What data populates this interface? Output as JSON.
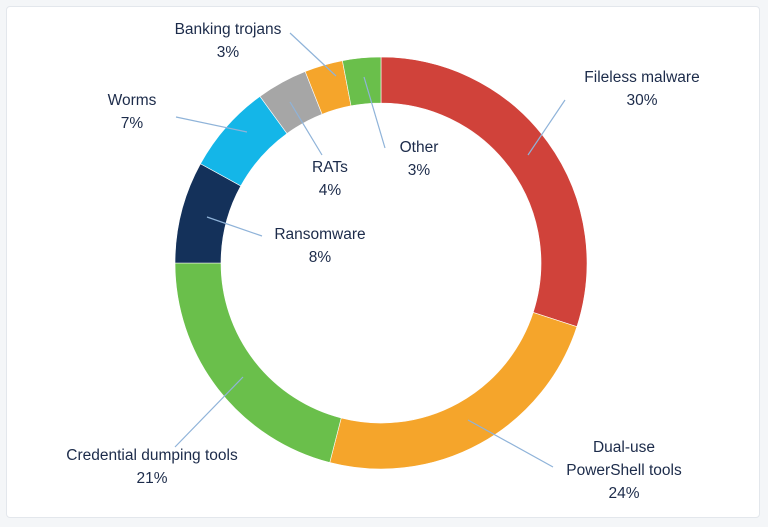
{
  "chart_data": {
    "type": "donut",
    "title": "",
    "start_angle_deg": 0,
    "direction": "clockwise",
    "series": [
      {
        "name": "",
        "slices": [
          {
            "label": "Fileless malware",
            "value_text": "30%",
            "value": 30,
            "color": "#d0423a"
          },
          {
            "label": "Dual-use PowerShell tools",
            "label_lines": [
              "Dual-use",
              "PowerShell tools"
            ],
            "value_text": "24%",
            "value": 24,
            "color": "#f5a52b"
          },
          {
            "label": "Credential dumping tools",
            "value_text": "21%",
            "value": 21,
            "color": "#6abf4b"
          },
          {
            "label": "Ransomware",
            "value_text": "8%",
            "value": 8,
            "color": "#14315a"
          },
          {
            "label": "Worms",
            "value_text": "7%",
            "value": 7,
            "color": "#14b6e8"
          },
          {
            "label": "RATs",
            "value_text": "4%",
            "value": 4,
            "color": "#a6a6a6"
          },
          {
            "label": "Banking trojans",
            "value_text": "3%",
            "value": 3,
            "color": "#f5a52b"
          },
          {
            "label": "Other",
            "value_text": "3%",
            "value": 3,
            "color": "#6abf4b"
          }
        ]
      }
    ],
    "legend": "none",
    "labels": "callouts-with-leader-lines"
  }
}
